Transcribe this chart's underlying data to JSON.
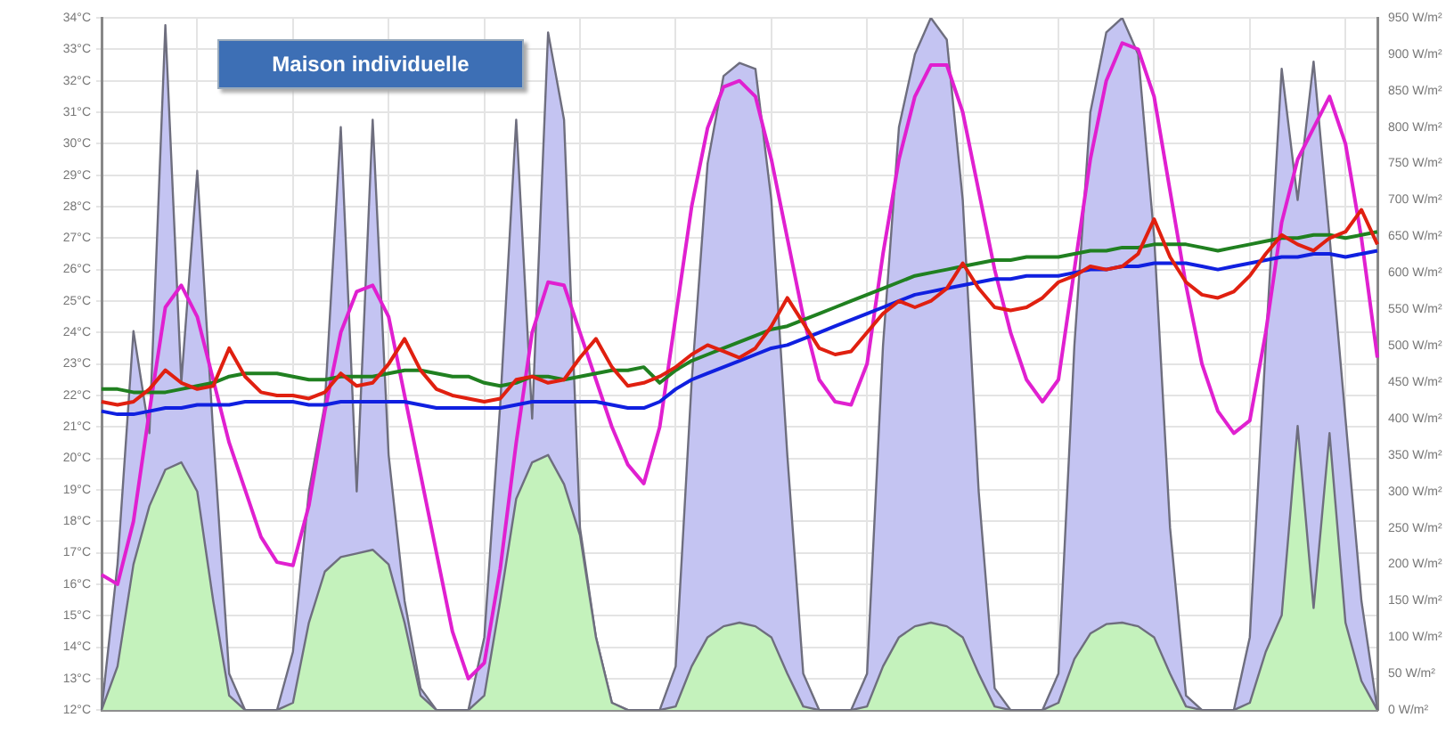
{
  "chart_data": {
    "type": "line",
    "title": "Maison individuelle",
    "categories": [
      null,
      null,
      null,
      null,
      null,
      null,
      null,
      null,
      null,
      null,
      null,
      null,
      null,
      null,
      null,
      null,
      null,
      null,
      null,
      null,
      null,
      null,
      null,
      null,
      null,
      null,
      null,
      null,
      null,
      null,
      null,
      null,
      null,
      null,
      null,
      null,
      null,
      null,
      null,
      null,
      null,
      null,
      null,
      null,
      null,
      null,
      null,
      null,
      null,
      null,
      null,
      null,
      null,
      null,
      null,
      null,
      null,
      null,
      null,
      null,
      null,
      null,
      null,
      null,
      null,
      null,
      null,
      null,
      null,
      null,
      null,
      null,
      null,
      null,
      null,
      null,
      null,
      null,
      null,
      null,
      null
    ],
    "series": [
      {
        "type": "area",
        "axis": "y2",
        "color": "#c4c4f2",
        "values": [
          0,
          200,
          520,
          380,
          940,
          450,
          740,
          380,
          50,
          0,
          0,
          0,
          80,
          300,
          420,
          800,
          300,
          810,
          350,
          150,
          30,
          0,
          0,
          0,
          100,
          420,
          810,
          400,
          930,
          810,
          250,
          100,
          10,
          0,
          0,
          0,
          60,
          450,
          750,
          870,
          888,
          880,
          700,
          350,
          50,
          0,
          0,
          0,
          50,
          500,
          800,
          900,
          950,
          920,
          700,
          300,
          30,
          0,
          0,
          0,
          50,
          500,
          820,
          930,
          950,
          900,
          650,
          250,
          20,
          0,
          0,
          0,
          100,
          500,
          880,
          700,
          890,
          650,
          400,
          150,
          0
        ]
      },
      {
        "type": "area",
        "axis": "y2",
        "color": "#c4f2bc",
        "values": [
          0,
          60,
          200,
          280,
          330,
          340,
          300,
          150,
          20,
          0,
          0,
          0,
          10,
          120,
          190,
          210,
          215,
          220,
          200,
          120,
          20,
          0,
          0,
          0,
          20,
          150,
          290,
          340,
          350,
          310,
          240,
          100,
          10,
          0,
          0,
          0,
          5,
          60,
          100,
          115,
          120,
          115,
          100,
          50,
          5,
          0,
          0,
          0,
          5,
          60,
          100,
          115,
          120,
          115,
          100,
          50,
          5,
          0,
          0,
          0,
          10,
          70,
          105,
          118,
          120,
          115,
          100,
          50,
          5,
          0,
          0,
          0,
          10,
          80,
          130,
          390,
          140,
          380,
          120,
          40,
          0
        ]
      },
      {
        "type": "line",
        "color": "#e020d0",
        "values": [
          16.3,
          16.0,
          18,
          21.5,
          24.8,
          25.5,
          24.5,
          22.5,
          20.5,
          19,
          17.5,
          16.7,
          16.6,
          18.5,
          21.5,
          24,
          25.3,
          25.5,
          24.5,
          22,
          19.5,
          17,
          14.5,
          13.0,
          13.5,
          16.5,
          20.5,
          24,
          25.6,
          25.5,
          24,
          22.5,
          21,
          19.8,
          19.2,
          21,
          24.5,
          28,
          30.5,
          31.8,
          32,
          31.5,
          29.5,
          27,
          24.5,
          22.5,
          21.8,
          21.7,
          23,
          26.5,
          29.5,
          31.5,
          32.5,
          32.5,
          31,
          28.5,
          26,
          24,
          22.5,
          21.8,
          22.5,
          26,
          29.5,
          32,
          33.2,
          33,
          31.5,
          28.5,
          25.5,
          23,
          21.5,
          20.8,
          21.2,
          24,
          27.5,
          29.5,
          30.5,
          31.5,
          30,
          27,
          23.2
        ]
      },
      {
        "type": "line",
        "color": "#208020",
        "values": [
          22.2,
          22.2,
          22.1,
          22.1,
          22.1,
          22.2,
          22.3,
          22.4,
          22.6,
          22.7,
          22.7,
          22.7,
          22.6,
          22.5,
          22.5,
          22.6,
          22.6,
          22.6,
          22.7,
          22.8,
          22.8,
          22.7,
          22.6,
          22.6,
          22.4,
          22.3,
          22.4,
          22.6,
          22.6,
          22.5,
          22.6,
          22.7,
          22.8,
          22.8,
          22.9,
          22.4,
          22.8,
          23.1,
          23.3,
          23.5,
          23.7,
          23.9,
          24.1,
          24.2,
          24.4,
          24.6,
          24.8,
          25.0,
          25.2,
          25.4,
          25.6,
          25.8,
          25.9,
          26.0,
          26.1,
          26.2,
          26.3,
          26.3,
          26.4,
          26.4,
          26.4,
          26.5,
          26.6,
          26.6,
          26.7,
          26.7,
          26.8,
          26.8,
          26.8,
          26.7,
          26.6,
          26.7,
          26.8,
          26.9,
          27.0,
          27.0,
          27.1,
          27.1,
          27.0,
          27.1,
          27.2
        ]
      },
      {
        "type": "line",
        "color": "#1020e0",
        "values": [
          21.5,
          21.4,
          21.4,
          21.5,
          21.6,
          21.6,
          21.7,
          21.7,
          21.7,
          21.8,
          21.8,
          21.8,
          21.8,
          21.7,
          21.7,
          21.8,
          21.8,
          21.8,
          21.8,
          21.8,
          21.7,
          21.6,
          21.6,
          21.6,
          21.6,
          21.6,
          21.7,
          21.8,
          21.8,
          21.8,
          21.8,
          21.8,
          21.7,
          21.6,
          21.6,
          21.8,
          22.2,
          22.5,
          22.7,
          22.9,
          23.1,
          23.3,
          23.5,
          23.6,
          23.8,
          24.0,
          24.2,
          24.4,
          24.6,
          24.8,
          25.0,
          25.2,
          25.3,
          25.4,
          25.5,
          25.6,
          25.7,
          25.7,
          25.8,
          25.8,
          25.8,
          25.9,
          26.0,
          26.0,
          26.1,
          26.1,
          26.2,
          26.2,
          26.2,
          26.1,
          26.0,
          26.1,
          26.2,
          26.3,
          26.4,
          26.4,
          26.5,
          26.5,
          26.4,
          26.5,
          26.6
        ]
      },
      {
        "type": "line",
        "color": "#e02010",
        "values": [
          21.8,
          21.7,
          21.8,
          22.2,
          22.8,
          22.4,
          22.2,
          22.3,
          23.5,
          22.6,
          22.1,
          22.0,
          22.0,
          21.9,
          22.1,
          22.7,
          22.3,
          22.4,
          23.0,
          23.8,
          22.8,
          22.2,
          22.0,
          21.9,
          21.8,
          21.9,
          22.5,
          22.6,
          22.4,
          22.5,
          23.2,
          23.8,
          22.9,
          22.3,
          22.4,
          22.6,
          22.9,
          23.3,
          23.6,
          23.4,
          23.2,
          23.5,
          24.2,
          25.1,
          24.3,
          23.5,
          23.3,
          23.4,
          24.0,
          24.6,
          25.0,
          24.8,
          25.0,
          25.4,
          26.2,
          25.4,
          24.8,
          24.7,
          24.8,
          25.1,
          25.6,
          25.8,
          26.1,
          26.0,
          26.1,
          26.5,
          27.6,
          26.4,
          25.6,
          25.2,
          25.1,
          25.3,
          25.8,
          26.5,
          27.1,
          26.8,
          26.6,
          27.0,
          27.2,
          27.9,
          26.8
        ]
      }
    ],
    "ylim": [
      12,
      34
    ],
    "yticks": [
      {
        "value": 12,
        "label": "12°C"
      },
      {
        "value": 13,
        "label": "13°C"
      },
      {
        "value": 14,
        "label": "14°C"
      },
      {
        "value": 15,
        "label": "15°C"
      },
      {
        "value": 16,
        "label": "16°C"
      },
      {
        "value": 17,
        "label": "17°C"
      },
      {
        "value": 18,
        "label": "18°C"
      },
      {
        "value": 19,
        "label": "19°C"
      },
      {
        "value": 20,
        "label": "20°C"
      },
      {
        "value": 21,
        "label": "21°C"
      },
      {
        "value": 22,
        "label": "22°C"
      },
      {
        "value": 23,
        "label": "23°C"
      },
      {
        "value": 24,
        "label": "24°C"
      },
      {
        "value": 25,
        "label": "25°C"
      },
      {
        "value": 26,
        "label": "26°C"
      },
      {
        "value": 27,
        "label": "27°C"
      },
      {
        "value": 28,
        "label": "28°C"
      },
      {
        "value": 29,
        "label": "29°C"
      },
      {
        "value": 30,
        "label": "30°C"
      },
      {
        "value": 31,
        "label": "31°C"
      },
      {
        "value": 32,
        "label": "32°C"
      },
      {
        "value": 33,
        "label": "33°C"
      },
      {
        "value": 34,
        "label": "34°C"
      }
    ],
    "y2lim": [
      0,
      950
    ],
    "y2ticks": [
      {
        "value": 0,
        "label": "0 W/m²"
      },
      {
        "value": 50,
        "label": "50 W/m²"
      },
      {
        "value": 100,
        "label": "100 W/m²"
      },
      {
        "value": 150,
        "label": "150 W/m²"
      },
      {
        "value": 200,
        "label": "200 W/m²"
      },
      {
        "value": 250,
        "label": "250 W/m²"
      },
      {
        "value": 300,
        "label": "300 W/m²"
      },
      {
        "value": 350,
        "label": "350 W/m²"
      },
      {
        "value": 400,
        "label": "400 W/m²"
      },
      {
        "value": 450,
        "label": "450 W/m²"
      },
      {
        "value": 500,
        "label": "500 W/m²"
      },
      {
        "value": 550,
        "label": "550 W/m²"
      },
      {
        "value": 600,
        "label": "600 W/m²"
      },
      {
        "value": 650,
        "label": "650 W/m²"
      },
      {
        "value": 700,
        "label": "700 W/m²"
      },
      {
        "value": 750,
        "label": "750 W/m²"
      },
      {
        "value": 800,
        "label": "800 W/m²"
      },
      {
        "value": 850,
        "label": "850 W/m²"
      },
      {
        "value": 900,
        "label": "900 W/m²"
      },
      {
        "value": 950,
        "label": "950 W/m²"
      }
    ],
    "grid": true,
    "legend": false,
    "marker": "none",
    "line_style": "solid"
  }
}
